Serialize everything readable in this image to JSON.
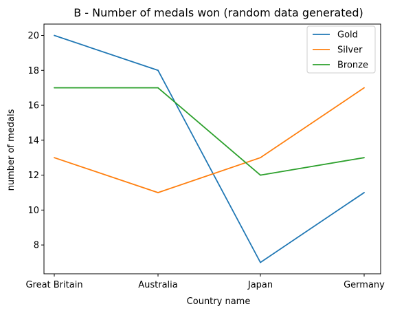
{
  "chart_data": {
    "type": "line",
    "title": "B - Number of medals won (random data generated)",
    "xlabel": "Country name",
    "ylabel": "number of medals",
    "categories": [
      "Great Britain",
      "Australia",
      "Japan",
      "Germany"
    ],
    "ylim": [
      6.35,
      20.65
    ],
    "yticks": [
      8,
      10,
      12,
      14,
      16,
      18,
      20
    ],
    "grid": false,
    "legend_position": "top-right",
    "series": [
      {
        "name": "Gold",
        "color": "#1f77b4",
        "values": [
          20,
          18,
          7,
          11
        ]
      },
      {
        "name": "Silver",
        "color": "#ff7f0e",
        "values": [
          13,
          11,
          13,
          17
        ]
      },
      {
        "name": "Bronze",
        "color": "#2ca02c",
        "values": [
          17,
          17,
          12,
          13
        ]
      }
    ]
  }
}
